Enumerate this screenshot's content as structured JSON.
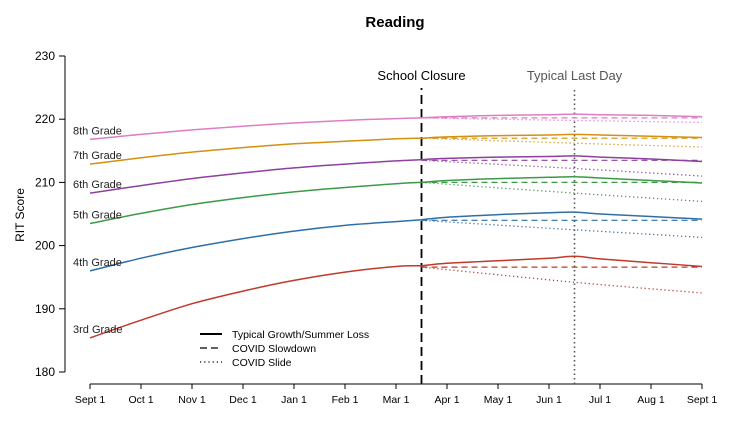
{
  "chart_data": {
    "type": "line",
    "title": "Reading",
    "ylabel": "RIT Score",
    "xlabel": "",
    "ylim": [
      180,
      230
    ],
    "yticks": [
      180,
      190,
      200,
      210,
      220,
      230
    ],
    "x_categories": [
      "Sept 1",
      "Oct 1",
      "Nov 1",
      "Dec 1",
      "Jan 1",
      "Feb 1",
      "Mar 1",
      "Apr 1",
      "May 1",
      "Jun 1",
      "Jul 1",
      "Aug 1",
      "Sept 1"
    ],
    "x_index_range": [
      0,
      12
    ],
    "annotations": [
      {
        "label": "School Closure",
        "x": 6.5,
        "style": "dashed",
        "color": "#000000"
      },
      {
        "label": "Typical Last Day",
        "x": 9.5,
        "style": "dotted",
        "color": "#555555"
      }
    ],
    "legend": {
      "placement": "bottom-left",
      "entries": [
        {
          "label": "Typical Growth/Summer Loss",
          "style": "solid"
        },
        {
          "label": "COVID Slowdown",
          "style": "dashed"
        },
        {
          "label": "COVID Slide",
          "style": "dotted"
        }
      ]
    },
    "series": [
      {
        "name": "3rd Grade",
        "color": "#c0392b",
        "base_x": [
          0,
          1,
          2,
          3,
          4,
          5,
          6,
          6.5
        ],
        "base_y": [
          185.4,
          188.2,
          190.8,
          192.8,
          194.5,
          195.8,
          196.7,
          196.8
        ],
        "typical_x": [
          6.5,
          7,
          8,
          9,
          9.5,
          10,
          11,
          12
        ],
        "typical_y": [
          196.8,
          197.2,
          197.6,
          198.0,
          198.3,
          197.9,
          197.3,
          196.7
        ],
        "slowdown_x": [
          6.5,
          12
        ],
        "slowdown_y": [
          196.6,
          196.6
        ],
        "slide_x": [
          6.5,
          9.5,
          12
        ],
        "slide_y": [
          196.6,
          194.2,
          192.5
        ]
      },
      {
        "name": "4th Grade",
        "color": "#2e6fa7",
        "base_x": [
          0,
          1,
          2,
          3,
          4,
          5,
          6,
          6.5
        ],
        "base_y": [
          196.0,
          198.0,
          199.7,
          201.1,
          202.3,
          203.2,
          203.8,
          204.1
        ],
        "typical_x": [
          6.5,
          7,
          8,
          9,
          9.5,
          10,
          11,
          12
        ],
        "typical_y": [
          204.1,
          204.5,
          204.9,
          205.2,
          205.3,
          205.0,
          204.6,
          204.2
        ],
        "slowdown_x": [
          6.5,
          12
        ],
        "slowdown_y": [
          204.0,
          204.0
        ],
        "slide_x": [
          6.5,
          9.5,
          12
        ],
        "slide_y": [
          204.0,
          202.5,
          201.3
        ]
      },
      {
        "name": "5th Grade",
        "color": "#3c9a47",
        "base_x": [
          0,
          1,
          2,
          3,
          4,
          5,
          6,
          6.5
        ],
        "base_y": [
          203.5,
          205.1,
          206.5,
          207.6,
          208.5,
          209.2,
          209.8,
          210.0
        ],
        "typical_x": [
          6.5,
          7,
          8,
          9,
          9.5,
          10,
          11,
          12
        ],
        "typical_y": [
          210.0,
          210.3,
          210.6,
          210.8,
          210.9,
          210.7,
          210.3,
          209.9
        ],
        "slowdown_x": [
          6.5,
          12
        ],
        "slowdown_y": [
          210.0,
          210.0
        ],
        "slide_x": [
          6.5,
          9.5,
          12
        ],
        "slide_y": [
          210.0,
          208.3,
          207.0
        ]
      },
      {
        "name": "6th Grade",
        "color": "#8e3fa0",
        "base_x": [
          0,
          1,
          2,
          3,
          4,
          5,
          6,
          6.5
        ],
        "base_y": [
          208.3,
          209.5,
          210.6,
          211.5,
          212.3,
          212.9,
          213.4,
          213.6
        ],
        "typical_x": [
          6.5,
          7,
          8,
          9,
          9.5,
          10,
          11,
          12
        ],
        "typical_y": [
          213.6,
          213.8,
          214.0,
          214.1,
          214.2,
          214.0,
          213.7,
          213.3
        ],
        "slowdown_x": [
          6.5,
          12
        ],
        "slowdown_y": [
          213.5,
          213.5
        ],
        "slide_x": [
          6.5,
          9.5,
          12
        ],
        "slide_y": [
          213.5,
          212.2,
          211.0
        ]
      },
      {
        "name": "7th Grade",
        "color": "#d4900f",
        "base_x": [
          0,
          1,
          2,
          3,
          4,
          5,
          6,
          6.5
        ],
        "base_y": [
          212.9,
          213.9,
          214.8,
          215.5,
          216.1,
          216.5,
          216.9,
          217.0
        ],
        "typical_x": [
          6.5,
          7,
          8,
          9,
          9.5,
          10,
          11,
          12
        ],
        "typical_y": [
          217.0,
          217.2,
          217.4,
          217.5,
          217.6,
          217.5,
          217.3,
          217.1
        ],
        "slowdown_x": [
          6.5,
          12
        ],
        "slowdown_y": [
          217.0,
          217.0
        ],
        "slide_x": [
          6.5,
          9.5,
          12
        ],
        "slide_y": [
          217.0,
          216.2,
          215.6
        ]
      },
      {
        "name": "8th Grade",
        "color": "#e07cc4",
        "base_x": [
          0,
          1,
          2,
          3,
          4,
          5,
          6,
          6.5
        ],
        "base_y": [
          216.8,
          217.6,
          218.3,
          218.9,
          219.4,
          219.8,
          220.1,
          220.2
        ],
        "typical_x": [
          6.5,
          7,
          8,
          9,
          9.5,
          10,
          11,
          12
        ],
        "typical_y": [
          220.2,
          220.4,
          220.6,
          220.7,
          220.8,
          220.7,
          220.6,
          220.4
        ],
        "slowdown_x": [
          6.5,
          12
        ],
        "slowdown_y": [
          220.2,
          220.2
        ],
        "slide_x": [
          6.5,
          9.5,
          12
        ],
        "slide_y": [
          220.2,
          219.8,
          219.5
        ]
      }
    ]
  }
}
